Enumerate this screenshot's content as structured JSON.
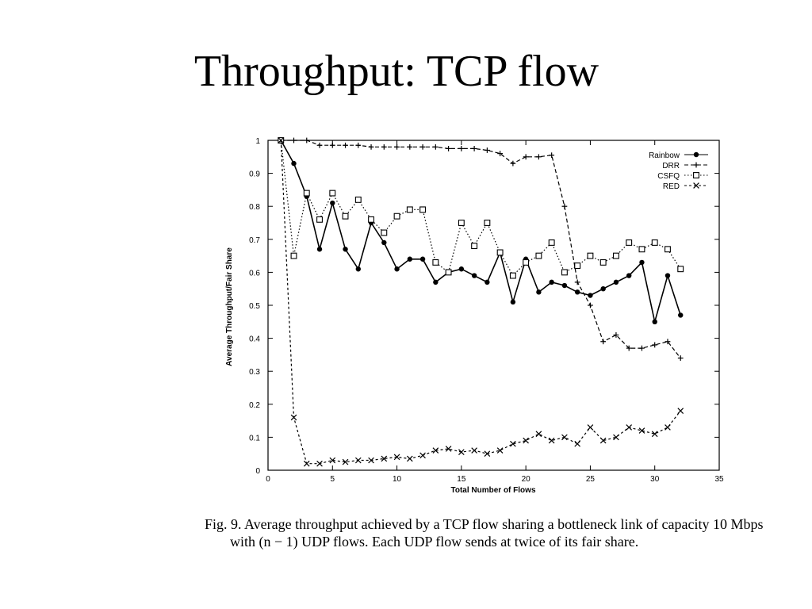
{
  "slide": {
    "title": "Throughput: TCP flow"
  },
  "caption": "Fig. 9.  Average throughput achieved by a TCP flow sharing a bottleneck link of capacity 10 Mbps with (n − 1) UDP flows.  Each UDP flow sends at twice of its fair share.",
  "chart_data": {
    "type": "line",
    "xlabel": "Total Number of Flows",
    "ylabel": "Average Throughput/Fair Share",
    "xlim": [
      0,
      35
    ],
    "ylim": [
      0,
      1
    ],
    "xticks": [
      0,
      5,
      10,
      15,
      20,
      25,
      30,
      35
    ],
    "yticks": [
      0,
      0.1,
      0.2,
      0.3,
      0.4,
      0.5,
      0.6,
      0.7,
      0.8,
      0.9,
      1
    ],
    "grid": false,
    "legend_position": "top-right",
    "series": [
      {
        "name": "Rainbow",
        "marker": "filled-circle",
        "dash": "solid",
        "x": [
          1,
          2,
          3,
          4,
          5,
          6,
          7,
          8,
          9,
          10,
          11,
          12,
          13,
          14,
          15,
          16,
          17,
          18,
          19,
          20,
          21,
          22,
          23,
          24,
          25,
          26,
          27,
          28,
          29,
          30,
          31,
          32
        ],
        "y": [
          1.0,
          0.93,
          0.83,
          0.67,
          0.81,
          0.67,
          0.61,
          0.75,
          0.69,
          0.61,
          0.64,
          0.64,
          0.57,
          0.6,
          0.61,
          0.59,
          0.57,
          0.66,
          0.51,
          0.64,
          0.54,
          0.57,
          0.56,
          0.54,
          0.53,
          0.55,
          0.57,
          0.59,
          0.63,
          0.45,
          0.59,
          0.47
        ]
      },
      {
        "name": "DRR",
        "marker": "plus",
        "dash": "long-dash",
        "x": [
          1,
          2,
          3,
          4,
          5,
          6,
          7,
          8,
          9,
          10,
          11,
          12,
          13,
          14,
          15,
          16,
          17,
          18,
          19,
          20,
          21,
          22,
          23,
          24,
          25,
          26,
          27,
          28,
          29,
          30,
          31,
          32
        ],
        "y": [
          1.0,
          1.0,
          1.0,
          0.985,
          0.985,
          0.985,
          0.985,
          0.98,
          0.98,
          0.98,
          0.98,
          0.98,
          0.98,
          0.975,
          0.975,
          0.975,
          0.97,
          0.96,
          0.93,
          0.95,
          0.95,
          0.955,
          0.8,
          0.57,
          0.5,
          0.39,
          0.41,
          0.37,
          0.37,
          0.38,
          0.39,
          0.34
        ]
      },
      {
        "name": "CSFQ",
        "marker": "square",
        "dash": "dot",
        "x": [
          1,
          2,
          3,
          4,
          5,
          6,
          7,
          8,
          9,
          10,
          11,
          12,
          13,
          14,
          15,
          16,
          17,
          18,
          19,
          20,
          21,
          22,
          23,
          24,
          25,
          26,
          27,
          28,
          29,
          30,
          31,
          32
        ],
        "y": [
          1.0,
          0.65,
          0.84,
          0.76,
          0.84,
          0.77,
          0.82,
          0.76,
          0.72,
          0.77,
          0.79,
          0.79,
          0.63,
          0.6,
          0.75,
          0.68,
          0.75,
          0.66,
          0.59,
          0.63,
          0.65,
          0.69,
          0.6,
          0.62,
          0.65,
          0.63,
          0.65,
          0.69,
          0.67,
          0.69,
          0.67,
          0.61
        ]
      },
      {
        "name": "RED",
        "marker": "cross",
        "dash": "dash",
        "x": [
          1,
          2,
          3,
          4,
          5,
          6,
          7,
          8,
          9,
          10,
          11,
          12,
          13,
          14,
          15,
          16,
          17,
          18,
          19,
          20,
          21,
          22,
          23,
          24,
          25,
          26,
          27,
          28,
          29,
          30,
          31,
          32
        ],
        "y": [
          1.0,
          0.16,
          0.02,
          0.02,
          0.03,
          0.025,
          0.03,
          0.03,
          0.035,
          0.04,
          0.035,
          0.045,
          0.06,
          0.065,
          0.055,
          0.06,
          0.05,
          0.06,
          0.08,
          0.09,
          0.11,
          0.09,
          0.1,
          0.08,
          0.13,
          0.09,
          0.1,
          0.13,
          0.12,
          0.11,
          0.13,
          0.18
        ]
      }
    ]
  }
}
